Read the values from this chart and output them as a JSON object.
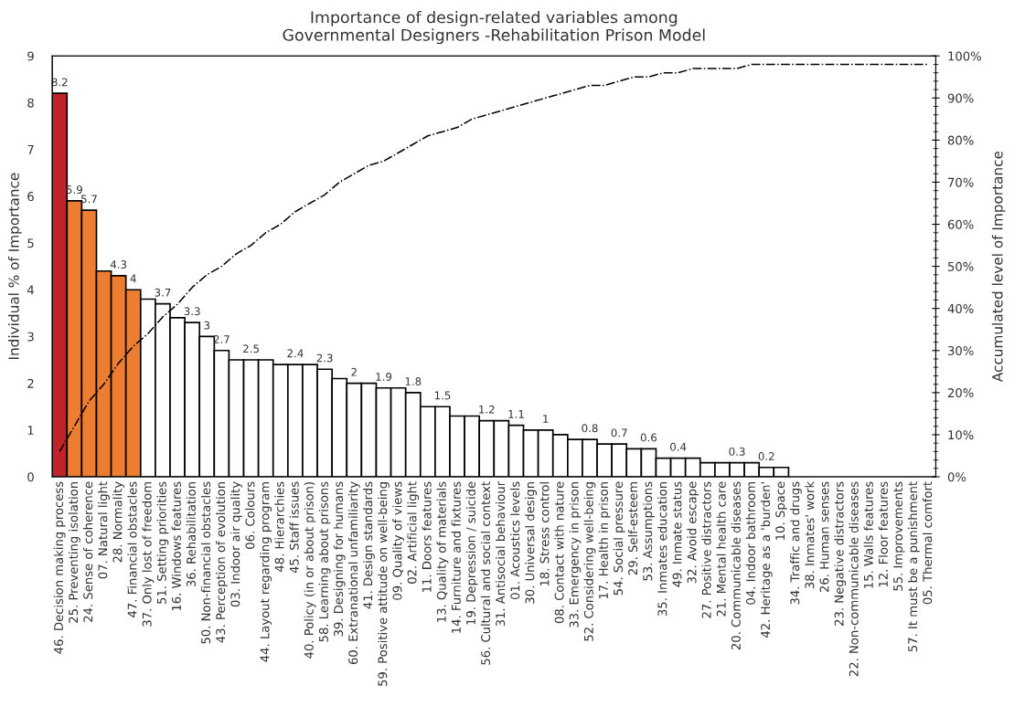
{
  "chart_data": {
    "type": "bar",
    "title": "Importance of design-related variables among\nGovernmental Designers -Rehabilitation Prison Model",
    "ylabel": "Individual % of Importance",
    "y2label": "Accumulated level of Importance",
    "categories": [
      "46. Decision making process",
      "25. Preventing isolation",
      "24. Sense of coherence",
      "07. Natural light",
      "28. Normality",
      "47. Financial obstacles",
      "37. Only lost of freedom",
      "51. Setting priorities",
      "16. Windows features",
      "36. Rehabilitation",
      "50. Non-financial obstacles",
      "43. Perception of evolution",
      "03. Indoor air quality",
      "06. Colours",
      "44. Layout regarding program",
      "48. Hierarchies",
      "45. Staff issues",
      "40. Policy (in or about prison)",
      "58. Learning about prisons",
      "39. Designing for humans",
      "60. Extranational unfamiliarity",
      "41. Design standards",
      "59. Positive attitude on well-being",
      "09. Quality of views",
      "02. Artificial light",
      "11. Doors features",
      "13. Quality of materials",
      "14. Furniture and fixtures",
      "19. Depression / suicide",
      "56. Cultural and social context",
      "31. Antisocial behaviour",
      "01. Acoustics levels",
      "30. Universal design",
      "18. Stress control",
      "08. Contact with nature",
      "33. Emergency in prison",
      "52. Considering well-being",
      "17. Health in prison",
      "54. Social pressure",
      "29. Self-esteem",
      "53. Assumptions",
      "35. Inmates education",
      "49. Inmate status",
      "32. Avoid escape",
      "27. Positive distractors",
      "21. Mental health care",
      "20. Communicable diseases",
      "04. Indoor bathroom",
      "42. Heritage as a 'burden'",
      "10. Space",
      "34. Traffic and drugs",
      "38. Inmates' work",
      "26. Human senses",
      "23. Negative distractors",
      "22. Non-communicable diseases",
      "15. Walls features",
      "12. Floor features",
      "55. Improvements",
      "57. It must be a punishment",
      "05. Thermal comfort"
    ],
    "series": [
      {
        "colors": [
          "#c0232a",
          "#ed7d31",
          "#ed7d31",
          "#ed7d31",
          "#ed7d31",
          "#ed7d31",
          "#ffffff",
          "#ffffff",
          "#ffffff",
          "#ffffff",
          "#ffffff",
          "#ffffff",
          "#ffffff",
          "#ffffff",
          "#ffffff",
          "#ffffff",
          "#ffffff",
          "#ffffff",
          "#ffffff",
          "#ffffff",
          "#ffffff",
          "#ffffff",
          "#ffffff",
          "#ffffff",
          "#ffffff",
          "#ffffff",
          "#ffffff",
          "#ffffff",
          "#ffffff",
          "#ffffff",
          "#ffffff",
          "#ffffff",
          "#ffffff",
          "#ffffff",
          "#ffffff",
          "#ffffff",
          "#ffffff",
          "#ffffff",
          "#ffffff",
          "#ffffff",
          "#ffffff",
          "#ffffff",
          "#ffffff",
          "#ffffff",
          "#ffffff",
          "#ffffff",
          "#ffffff",
          "#ffffff",
          "#ffffff",
          "#ffffff",
          "#ffffff",
          "#ffffff",
          "#ffffff",
          "#ffffff",
          "#ffffff",
          "#ffffff",
          "#ffffff",
          "#ffffff",
          "#ffffff",
          "#ffffff"
        ],
        "values": [
          8.2,
          5.9,
          5.7,
          4.4,
          4.3,
          4.0,
          3.8,
          3.7,
          3.4,
          3.3,
          3.0,
          2.7,
          2.5,
          2.5,
          2.5,
          2.4,
          2.4,
          2.4,
          2.3,
          2.1,
          2.0,
          2.0,
          1.9,
          1.9,
          1.8,
          1.5,
          1.5,
          1.3,
          1.3,
          1.2,
          1.2,
          1.1,
          1.0,
          1.0,
          0.9,
          0.8,
          0.8,
          0.7,
          0.7,
          0.6,
          0.6,
          0.4,
          0.4,
          0.4,
          0.3,
          0.3,
          0.3,
          0.3,
          0.2,
          0.2,
          0,
          0,
          0,
          0,
          0,
          0,
          0,
          0,
          0,
          0
        ],
        "value_labels": [
          "8.2",
          "5.9",
          "5.7",
          null,
          "4.3",
          "4",
          null,
          "3.7",
          null,
          "3.3",
          "3",
          "2.7",
          null,
          "2.5",
          null,
          null,
          "2.4",
          null,
          "2.3",
          null,
          "2",
          null,
          "1.9",
          null,
          "1.8",
          null,
          "1.5",
          null,
          null,
          "1.2",
          null,
          "1.1",
          null,
          "1",
          null,
          null,
          "0.8",
          null,
          "0.7",
          null,
          "0.6",
          null,
          "0.4",
          null,
          null,
          null,
          "0.3",
          null,
          "0.2",
          null,
          null,
          null,
          null,
          null,
          null,
          null,
          null,
          null,
          null,
          null
        ]
      },
      {
        "type": "line",
        "axis": "y2",
        "color": "#000000",
        "line_style": "dashdot",
        "values": [
          6,
          12,
          18,
          22,
          27,
          31,
          34,
          38,
          41,
          45,
          48,
          50,
          53,
          55,
          58,
          60,
          63,
          65,
          67,
          70,
          72,
          74,
          75,
          77,
          79,
          81,
          82,
          83,
          85,
          86,
          87,
          88,
          89,
          90,
          91,
          92,
          93,
          93,
          94,
          95,
          95,
          96,
          96,
          97,
          97,
          97,
          97,
          98,
          98,
          98,
          98,
          98,
          98,
          98,
          98,
          98,
          98,
          98,
          98,
          98
        ]
      }
    ],
    "ylim": [
      0,
      9
    ],
    "yticks": [
      0,
      1,
      2,
      3,
      4,
      5,
      6,
      7,
      8,
      9
    ],
    "y2lim": [
      0,
      100
    ],
    "y2ticks": [
      {
        "value": 0,
        "label": "0%"
      },
      {
        "value": 10,
        "label": "10%"
      },
      {
        "value": 20,
        "label": "20%"
      },
      {
        "value": 30,
        "label": "30%"
      },
      {
        "value": 40,
        "label": "40%"
      },
      {
        "value": 50,
        "label": "50%"
      },
      {
        "value": 60,
        "label": "60%"
      },
      {
        "value": 70,
        "label": "70%"
      },
      {
        "value": 80,
        "label": "80%"
      },
      {
        "value": 90,
        "label": "90%"
      },
      {
        "value": 100,
        "label": "100%"
      }
    ]
  }
}
